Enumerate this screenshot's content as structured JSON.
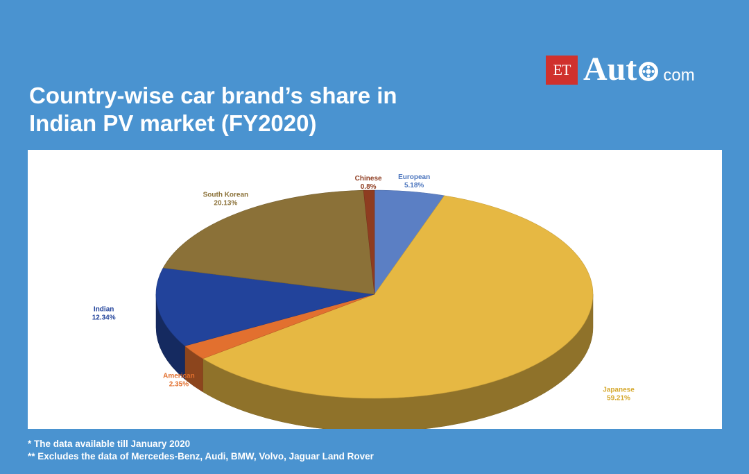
{
  "logo": {
    "et": "ET",
    "auto": "Aut",
    "com": "com"
  },
  "title_line1": "Country-wise car brand’s share in",
  "title_line2": "Indian PV market (FY2020)",
  "chart_data": {
    "type": "pie",
    "title": "Country-wise car brand’s share in Indian PV market (FY2020)",
    "slices": [
      {
        "name": "European",
        "value": 5.18,
        "label": "5.18%",
        "color": "#5b7fc4"
      },
      {
        "name": "Japanese",
        "value": 59.21,
        "label": "59.21%",
        "color": "#e6b843"
      },
      {
        "name": "American",
        "value": 2.35,
        "label": "2.35%",
        "color": "#e2702f"
      },
      {
        "name": "Indian",
        "value": 12.34,
        "label": "12.34%",
        "color": "#22439b"
      },
      {
        "name": "South Korean",
        "value": 20.13,
        "label": "20.13%",
        "color": "#8b7138"
      },
      {
        "name": "Chinese",
        "value": 0.8,
        "label": "0.8%",
        "color": "#8e3c20"
      }
    ]
  },
  "footnotes": [
    "* The data available till January 2020",
    "** Excludes the data of Mercedes-Benz, Audi, BMW, Volvo, Jaguar Land Rover"
  ]
}
